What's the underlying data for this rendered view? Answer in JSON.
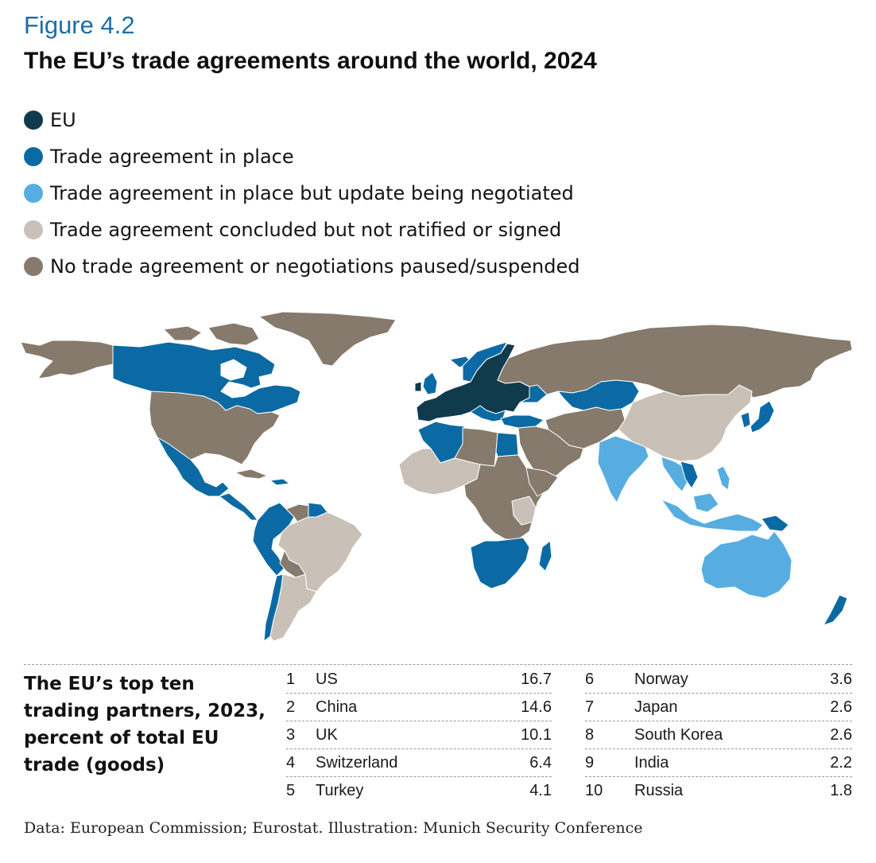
{
  "figure_label": "Figure 4.2",
  "title": "The EU’s trade agreements around the world, 2024",
  "colors": {
    "eu": "#0f3b4d",
    "in_place": "#0b6aa3",
    "update_negotiated": "#57ade0",
    "concluded": "#c9c0b7",
    "none": "#857a6b",
    "water": "#ffffff",
    "border": "#ffffff"
  },
  "legend": [
    {
      "label": "EU",
      "color": "#0f3b4d"
    },
    {
      "label": "Trade agreement in place",
      "color": "#0b6aa3"
    },
    {
      "label": "Trade agreement in place but update being negotiated",
      "color": "#57ade0"
    },
    {
      "label": "Trade agreement concluded but not ratified or signed",
      "color": "#c9c0b7"
    },
    {
      "label": "No trade agreement or negotiations paused/suspended",
      "color": "#857a6b"
    }
  ],
  "table": {
    "heading": "The EU’s top ten trading partners, 2023, percent of total EU trade (goods)",
    "rows": [
      {
        "rank": "1",
        "country": "US",
        "value": "16.7"
      },
      {
        "rank": "2",
        "country": "China",
        "value": "14.6"
      },
      {
        "rank": "3",
        "country": "UK",
        "value": "10.1"
      },
      {
        "rank": "4",
        "country": "Switzerland",
        "value": "6.4"
      },
      {
        "rank": "5",
        "country": "Turkey",
        "value": "4.1"
      },
      {
        "rank": "6",
        "country": "Norway",
        "value": "3.6"
      },
      {
        "rank": "7",
        "country": "Japan",
        "value": "2.6"
      },
      {
        "rank": "8",
        "country": "South Korea",
        "value": "2.6"
      },
      {
        "rank": "9",
        "country": "India",
        "value": "2.2"
      },
      {
        "rank": "10",
        "country": "Russia",
        "value": "1.8"
      }
    ]
  },
  "source": "Data: European Commission; Eurostat. Illustration: Munich Security Conference"
}
